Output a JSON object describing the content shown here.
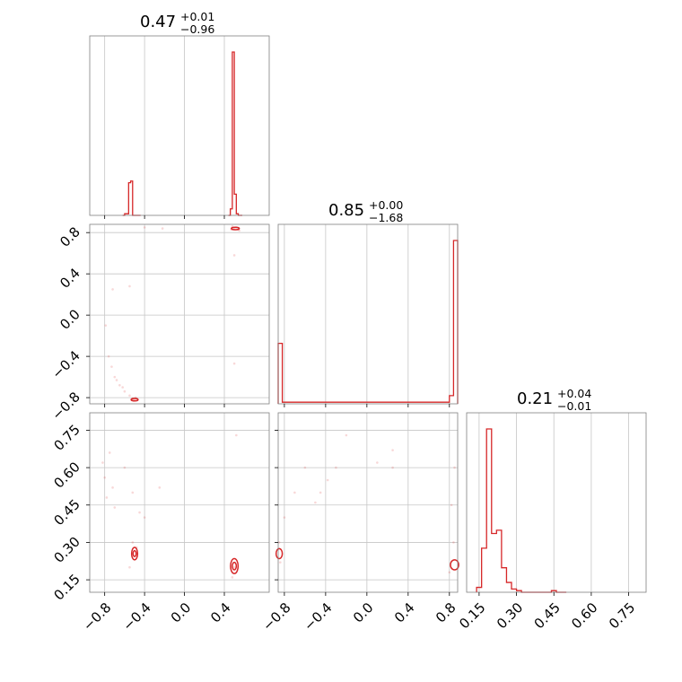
{
  "chart_data": {
    "type": "corner",
    "color": "#d62728",
    "parameters": [
      {
        "title": {
          "median": "0.47",
          "upper": "+0.01",
          "lower": "−0.96"
        },
        "range": [
          -0.95,
          0.85
        ],
        "ticks": [
          -0.8,
          -0.4,
          0.0,
          0.4
        ],
        "tick_labels": [
          "−0.8",
          "−0.4",
          "0.0",
          "0.4"
        ],
        "hist": {
          "edges": [
            -0.62,
            -0.6,
            -0.58,
            -0.56,
            -0.54,
            -0.52,
            -0.5,
            -0.48,
            -0.46,
            -0.44,
            0.44,
            0.46,
            0.48,
            0.5,
            0.52,
            0.54,
            0.56,
            0.58
          ],
          "values": [
            0.0,
            0.01,
            0.01,
            0.2,
            0.21,
            0.0,
            0.0,
            0.0,
            0.0,
            null,
            0.0,
            0.04,
            1.0,
            0.13,
            0.01,
            0.0,
            0.0
          ]
        }
      },
      {
        "title": {
          "median": "0.85",
          "upper": "+0.00",
          "lower": "−1.68"
        },
        "range": [
          -0.86,
          0.88
        ],
        "ticks": [
          -0.8,
          -0.4,
          0.0,
          0.4,
          0.8
        ],
        "tick_labels": [
          "−0.8",
          "−0.4",
          "0.0",
          "0.4",
          "0.8"
        ],
        "hist": {
          "edges": [
            -0.86,
            -0.82,
            -0.78,
            0.8,
            0.84,
            0.88
          ],
          "values": [
            0.37,
            0.01,
            0.01,
            0.05,
            1.0
          ]
        }
      },
      {
        "title": {
          "median": "0.21",
          "upper": "+0.04",
          "lower": "−0.01"
        },
        "range": [
          0.1,
          0.82
        ],
        "ticks": [
          0.15,
          0.3,
          0.45,
          0.6,
          0.75
        ],
        "tick_labels": [
          "0.15",
          "0.30",
          "0.45",
          "0.60",
          "0.75"
        ],
        "hist": {
          "edges": [
            0.14,
            0.16,
            0.18,
            0.2,
            0.22,
            0.24,
            0.26,
            0.28,
            0.3,
            0.32,
            0.34,
            0.36,
            0.38,
            0.4,
            0.42,
            0.44,
            0.46,
            0.48,
            0.5
          ],
          "values": [
            0.03,
            0.27,
            1.0,
            0.36,
            0.38,
            0.15,
            0.06,
            0.02,
            0.01,
            0.0,
            0.0,
            0.0,
            0.0,
            0.0,
            0.0,
            0.01,
            0.0,
            0.0
          ]
        }
      }
    ],
    "pairs": [
      {
        "x_param": 0,
        "y_param": 1,
        "samples": [
          [
            -0.53,
            -0.82
          ],
          [
            -0.52,
            -0.81
          ],
          [
            -0.51,
            -0.83
          ],
          [
            -0.5,
            -0.82
          ],
          [
            -0.49,
            -0.8
          ],
          [
            -0.55,
            -0.78
          ],
          [
            -0.6,
            -0.74
          ],
          [
            -0.65,
            -0.68
          ],
          [
            -0.7,
            -0.6
          ],
          [
            -0.73,
            -0.5
          ],
          [
            -0.76,
            -0.4
          ],
          [
            -0.79,
            -0.1
          ],
          [
            -0.72,
            0.25
          ],
          [
            -0.55,
            0.28
          ],
          [
            -0.4,
            0.85
          ],
          [
            -0.22,
            0.84
          ],
          [
            0.48,
            0.86
          ],
          [
            0.5,
            0.84
          ],
          [
            0.52,
            0.85
          ],
          [
            0.54,
            0.83
          ],
          [
            0.55,
            0.82
          ],
          [
            0.47,
            0.83
          ],
          [
            0.5,
            0.58
          ],
          [
            0.5,
            -0.47
          ],
          [
            -0.68,
            -0.63
          ],
          [
            -0.62,
            -0.7
          ]
        ],
        "contours": [
          {
            "cx": -0.5,
            "cy": -0.82,
            "rx": 0.035,
            "ry": 0.012
          },
          {
            "cx": 0.51,
            "cy": 0.84,
            "rx": 0.04,
            "ry": 0.012
          }
        ]
      },
      {
        "x_param": 0,
        "y_param": 2,
        "samples": [
          [
            -0.82,
            0.62
          ],
          [
            -0.8,
            0.56
          ],
          [
            -0.75,
            0.66
          ],
          [
            -0.72,
            0.52
          ],
          [
            -0.6,
            0.6
          ],
          [
            -0.52,
            0.5
          ],
          [
            -0.45,
            0.42
          ],
          [
            -0.4,
            0.4
          ],
          [
            -0.25,
            0.52
          ],
          [
            -0.55,
            0.2
          ],
          [
            -0.52,
            0.3
          ],
          [
            -0.48,
            0.28
          ],
          [
            0.48,
            0.16
          ],
          [
            0.5,
            0.2
          ],
          [
            0.52,
            0.73
          ],
          [
            -0.78,
            0.48
          ],
          [
            -0.7,
            0.44
          ]
        ],
        "contours": [
          {
            "cx": -0.5,
            "cy": 0.255,
            "rx": 0.03,
            "ry": 0.025
          },
          {
            "cx": -0.5,
            "cy": 0.255,
            "rx": 0.015,
            "ry": 0.012
          },
          {
            "cx": 0.5,
            "cy": 0.205,
            "rx": 0.038,
            "ry": 0.03
          },
          {
            "cx": 0.5,
            "cy": 0.205,
            "rx": 0.02,
            "ry": 0.015
          }
        ]
      },
      {
        "x_param": 1,
        "y_param": 2,
        "samples": [
          [
            -0.85,
            0.3
          ],
          [
            -0.84,
            0.22
          ],
          [
            -0.8,
            0.4
          ],
          [
            -0.7,
            0.5
          ],
          [
            -0.6,
            0.6
          ],
          [
            -0.5,
            0.46
          ],
          [
            -0.45,
            0.5
          ],
          [
            -0.38,
            0.55
          ],
          [
            -0.3,
            0.6
          ],
          [
            -0.2,
            0.73
          ],
          [
            0.1,
            0.62
          ],
          [
            0.25,
            0.6
          ],
          [
            0.25,
            0.67
          ],
          [
            0.8,
            0.18
          ],
          [
            0.85,
            0.6
          ],
          [
            0.82,
            0.45
          ],
          [
            0.84,
            0.3
          ]
        ],
        "contours": [
          {
            "cx": -0.85,
            "cy": 0.255,
            "rx": 0.03,
            "ry": 0.02
          },
          {
            "cx": 0.85,
            "cy": 0.21,
            "rx": 0.04,
            "ry": 0.02
          }
        ]
      }
    ]
  }
}
